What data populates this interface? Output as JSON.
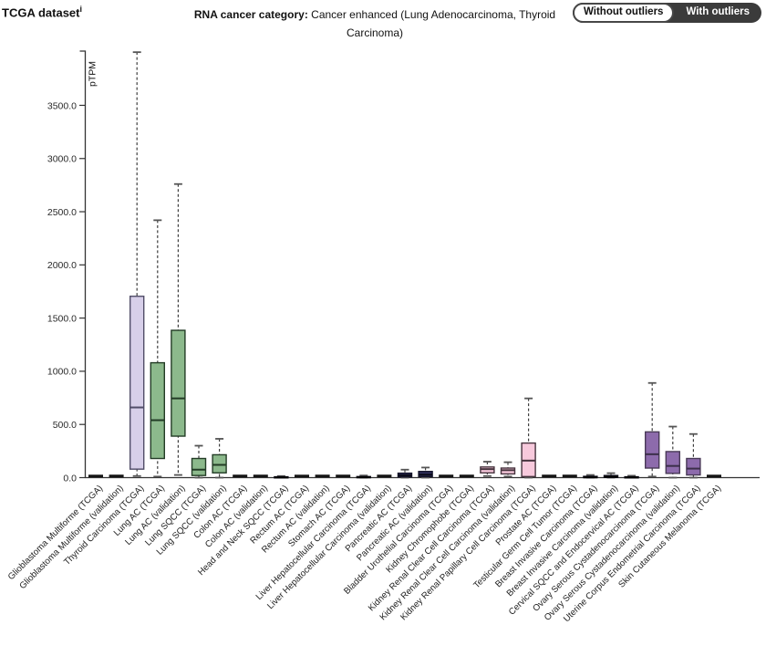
{
  "header": {
    "title": "TCGA dataset",
    "title_sup": "i",
    "category_label": "RNA cancer category:",
    "category_value": "Cancer enhanced (Lung Adenocarcinoma, Thyroid Carcinoma)",
    "toggle": {
      "without_label": "Without outliers",
      "with_label": "With outliers",
      "active": "With outliers"
    }
  },
  "chart_data": {
    "type": "boxplot",
    "title": "",
    "xlabel": "",
    "ylabel": "pTPM",
    "ylim": [
      0,
      4010
    ],
    "yticks": [
      0,
      500,
      1000,
      1500,
      2000,
      2500,
      3000,
      3500
    ],
    "ytick_format_decimals": 1,
    "grid": false,
    "legend": "none",
    "group_colors": {
      "thyroid": {
        "fill": "#d7cfe9",
        "stroke": "#514d68",
        "median": "#514d68"
      },
      "lung": {
        "fill": "#8cb98c",
        "stroke": "#233c26",
        "median": "#233c26"
      },
      "dark": {
        "fill": "#2a2a3e",
        "stroke": "#12121e",
        "median": "#000000"
      },
      "navy": {
        "fill": "#30305c",
        "stroke": "#121228",
        "median": "#0a0a18"
      },
      "kidney": {
        "fill": "#f7c9dc",
        "stroke": "#45333d",
        "median": "#45333d"
      },
      "female": {
        "fill": "#8d6bac",
        "stroke": "#493a57",
        "median": "#3c2f4a"
      },
      "flat": {
        "fill": "#141414",
        "stroke": "#141414",
        "median": "#141414"
      }
    },
    "whisker_color": "#3d3d3d",
    "cap_color": "#555555",
    "series": [
      {
        "label": "Glioblastoma Multiforme (TCGA)",
        "group": "flat",
        "flat": true,
        "low": 0,
        "q1": 0,
        "median": 0,
        "q3": 0,
        "high": 0
      },
      {
        "label": "Glioblastoma Multiforme (validation)",
        "group": "flat",
        "flat": true,
        "low": 0,
        "q1": 0,
        "median": 0,
        "q3": 0,
        "high": 0
      },
      {
        "label": "Thyroid Carcinoma (TCGA)",
        "group": "thyroid",
        "flat": false,
        "low": 15,
        "q1": 80,
        "median": 660,
        "q3": 1705,
        "high": 4000
      },
      {
        "label": "Lung AC (TCGA)",
        "group": "lung",
        "flat": false,
        "low": 10,
        "q1": 180,
        "median": 540,
        "q3": 1080,
        "high": 2420
      },
      {
        "label": "Lung AC (validation)",
        "group": "lung",
        "flat": false,
        "low": 25,
        "q1": 390,
        "median": 745,
        "q3": 1385,
        "high": 2760
      },
      {
        "label": "Lung SQCC (TCGA)",
        "group": "lung",
        "flat": false,
        "low": 0,
        "q1": 20,
        "median": 75,
        "q3": 180,
        "high": 300
      },
      {
        "label": "Lung SQCC (validation)",
        "group": "lung",
        "flat": false,
        "low": 0,
        "q1": 45,
        "median": 120,
        "q3": 215,
        "high": 365
      },
      {
        "label": "Colon AC (TCGA)",
        "group": "flat",
        "flat": true,
        "low": 0,
        "q1": 0,
        "median": 0,
        "q3": 0,
        "high": 0
      },
      {
        "label": "Colon AC (validation)",
        "group": "flat",
        "flat": true,
        "low": 0,
        "q1": 0,
        "median": 0,
        "q3": 0,
        "high": 0
      },
      {
        "label": "Head and Neck SQCC (TCGA)",
        "group": "dark",
        "flat": false,
        "low": 0,
        "q1": 0,
        "median": 2,
        "q3": 8,
        "high": 15
      },
      {
        "label": "Rectum AC (TCGA)",
        "group": "flat",
        "flat": true,
        "low": 0,
        "q1": 0,
        "median": 0,
        "q3": 0,
        "high": 0
      },
      {
        "label": "Rectum AC (validation)",
        "group": "flat",
        "flat": true,
        "low": 0,
        "q1": 0,
        "median": 0,
        "q3": 0,
        "high": 0
      },
      {
        "label": "Stomach AC (TCGA)",
        "group": "flat",
        "flat": true,
        "low": 0,
        "q1": 0,
        "median": 0,
        "q3": 0,
        "high": 0
      },
      {
        "label": "Liver Hepatocellular Carcinoma (TCGA)",
        "group": "dark",
        "flat": false,
        "low": 0,
        "q1": 0,
        "median": 3,
        "q3": 10,
        "high": 20
      },
      {
        "label": "Liver Hepatocellular Carcinoma (validation)",
        "group": "flat",
        "flat": true,
        "low": 0,
        "q1": 0,
        "median": 0,
        "q3": 0,
        "high": 0
      },
      {
        "label": "Pancreatic AC (TCGA)",
        "group": "navy",
        "flat": false,
        "low": 0,
        "q1": 8,
        "median": 22,
        "q3": 42,
        "high": 75
      },
      {
        "label": "Pancreatic AC (validation)",
        "group": "navy",
        "flat": false,
        "low": 0,
        "q1": 10,
        "median": 28,
        "q3": 58,
        "high": 95
      },
      {
        "label": "Bladder Urothelial Carcinoma (TCGA)",
        "group": "flat",
        "flat": true,
        "low": 0,
        "q1": 0,
        "median": 0,
        "q3": 0,
        "high": 0
      },
      {
        "label": "Kidney Chromophobe (TCGA)",
        "group": "flat",
        "flat": true,
        "low": 0,
        "q1": 0,
        "median": 0,
        "q3": 0,
        "high": 0
      },
      {
        "label": "Kidney Renal Clear Cell Carcinoma (TCGA)",
        "group": "kidney",
        "flat": false,
        "low": 15,
        "q1": 45,
        "median": 80,
        "q3": 100,
        "high": 150
      },
      {
        "label": "Kidney Renal Clear Cell Carcinoma (validation)",
        "group": "kidney",
        "flat": false,
        "low": 10,
        "q1": 35,
        "median": 70,
        "q3": 90,
        "high": 145
      },
      {
        "label": "Kidney Renal Papillary Cell Carcinoma (TCGA)",
        "group": "kidney",
        "flat": false,
        "low": 0,
        "q1": 10,
        "median": 160,
        "q3": 325,
        "high": 745
      },
      {
        "label": "Prostate AC (TCGA)",
        "group": "flat",
        "flat": true,
        "low": 0,
        "q1": 0,
        "median": 0,
        "q3": 0,
        "high": 0
      },
      {
        "label": "Testicular Germ Cell Tumor (TCGA)",
        "group": "flat",
        "flat": true,
        "low": 0,
        "q1": 0,
        "median": 0,
        "q3": 0,
        "high": 0
      },
      {
        "label": "Breast Invasive Carcinoma (TCGA)",
        "group": "dark",
        "flat": false,
        "low": 0,
        "q1": 0,
        "median": 3,
        "q3": 12,
        "high": 25
      },
      {
        "label": "Breast Invasive Carcinoma (validation)",
        "group": "dark",
        "flat": false,
        "low": 0,
        "q1": 2,
        "median": 8,
        "q3": 20,
        "high": 42
      },
      {
        "label": "Cervical SQCC and Endocervical AC (TCGA)",
        "group": "dark",
        "flat": false,
        "low": 0,
        "q1": 0,
        "median": 2,
        "q3": 8,
        "high": 18
      },
      {
        "label": "Ovary Serous Cystadenocarcinoma (TCGA)",
        "group": "female",
        "flat": false,
        "low": 10,
        "q1": 90,
        "median": 220,
        "q3": 430,
        "high": 890
      },
      {
        "label": "Ovary Serous Cystadenocarcinoma (validation)",
        "group": "female",
        "flat": false,
        "low": 0,
        "q1": 40,
        "median": 110,
        "q3": 245,
        "high": 480
      },
      {
        "label": "Uterine Corpus Endometrial Carcinoma (TCGA)",
        "group": "female",
        "flat": false,
        "low": 0,
        "q1": 25,
        "median": 85,
        "q3": 180,
        "high": 410
      },
      {
        "label": "Skin Cutaneous Melanoma (TCGA)",
        "group": "flat",
        "flat": true,
        "low": 0,
        "q1": 0,
        "median": 0,
        "q3": 0,
        "high": 0
      }
    ]
  }
}
